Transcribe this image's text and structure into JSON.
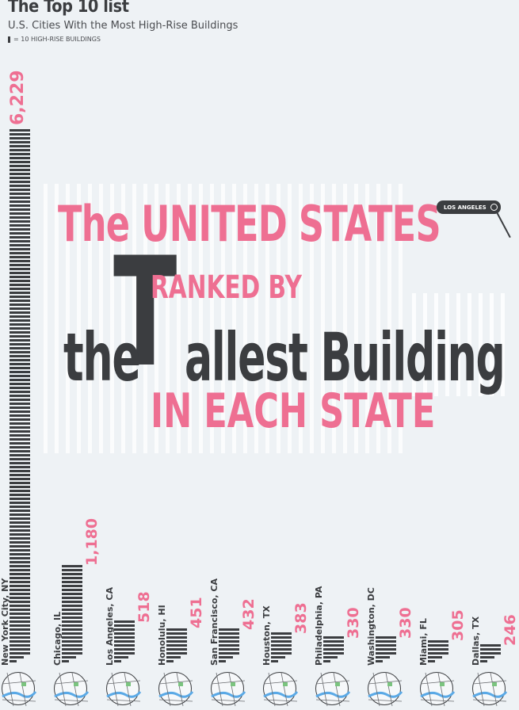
{
  "header": {
    "title": "The Top 10 list",
    "subtitle": "U.S. Cities With the Most High-Rise Buildings",
    "legend": "= 10 HIGH-RISE BUILDINGS"
  },
  "banner": {
    "line1": "The UNITED STATES",
    "big_t": "T",
    "ranked": "RANKED BY",
    "the": "the",
    "allest": "allest Building",
    "each": "IN EACH STATE"
  },
  "tag": {
    "label": "LOS ANGELES"
  },
  "colors": {
    "accent": "#ee6f92",
    "dark": "#3b3d40",
    "background": "#eef2f5",
    "map_water": "#5aa9e6",
    "map_park": "#7bc47f"
  },
  "chart_data": {
    "type": "bar",
    "title": "The Top 10 list",
    "subtitle": "U.S. Cities With the Most High-Rise Buildings",
    "unit_note": "= 10 HIGH-RISE BUILDINGS",
    "categories": [
      "New York City, NY",
      "Chicago, IL",
      "Los Angeles, CA",
      "Honolulu, HI",
      "San Francisco, CA",
      "Houston, TX",
      "Philadelphia, PA",
      "Washington, DC",
      "Miami, FL",
      "Dallas, TX"
    ],
    "values": [
      6229,
      1180,
      518,
      451,
      432,
      383,
      330,
      330,
      305,
      246
    ],
    "value_labels": [
      "6,229",
      "1,180",
      "518",
      "451",
      "432",
      "383",
      "330",
      "330",
      "305",
      "246"
    ],
    "ylim": [
      0,
      6229
    ]
  }
}
